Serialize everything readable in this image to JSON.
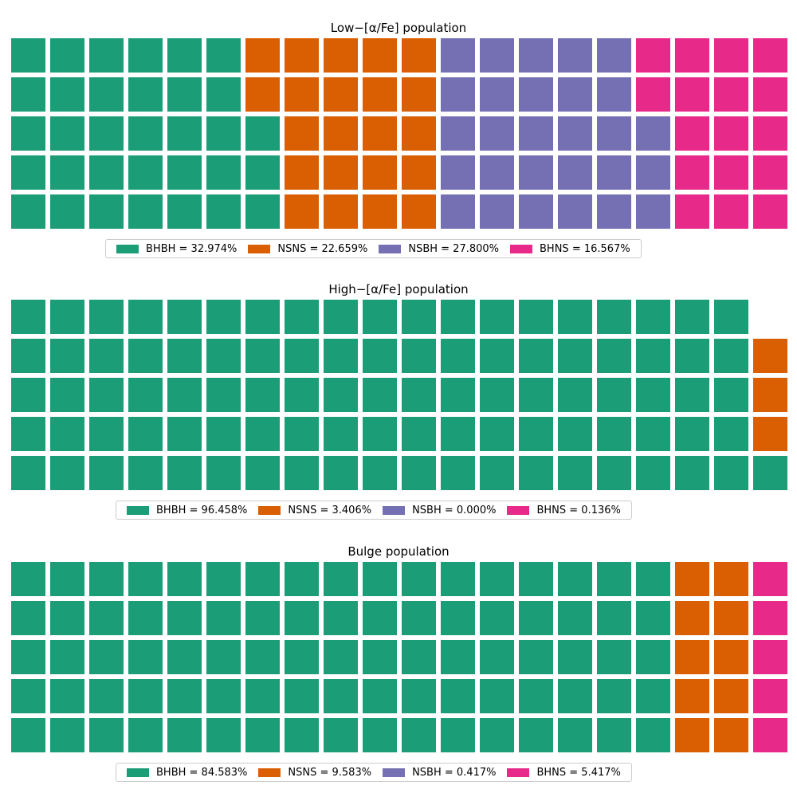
{
  "colors": {
    "BHBH": "#1b9e77",
    "NSNS": "#d95f02",
    "NSBH": "#7570b3",
    "BHNS": "#e7298a"
  },
  "chart_data": [
    {
      "type": "waffle",
      "title": "Low−[α/Fe] population",
      "grid": {
        "rows": 5,
        "cols": 20,
        "fill_order": "column-major, bottom-to-top"
      },
      "cells": {
        "BHBH": 33,
        "NSNS": 22,
        "NSBH": 28,
        "BHNS": 17
      },
      "series": [
        {
          "name": "BHBH",
          "percent": 32.974,
          "label": "BHBH = 32.974%"
        },
        {
          "name": "NSNS",
          "percent": 22.659,
          "label": "NSNS = 22.659%"
        },
        {
          "name": "NSBH",
          "percent": 27.8,
          "label": "NSBH = 27.800%"
        },
        {
          "name": "BHNS",
          "percent": 16.567,
          "label": "BHNS = 16.567%"
        }
      ]
    },
    {
      "type": "waffle",
      "title": "High−[α/Fe] population",
      "grid": {
        "rows": 5,
        "cols": 20,
        "fill_order": "column-major, bottom-to-top"
      },
      "cells": {
        "BHBH": 96,
        "NSNS": 3,
        "NSBH": 0,
        "BHNS": 0
      },
      "series": [
        {
          "name": "BHBH",
          "percent": 96.458,
          "label": "BHBH = 96.458%"
        },
        {
          "name": "NSNS",
          "percent": 3.406,
          "label": "NSNS = 3.406%"
        },
        {
          "name": "NSBH",
          "percent": 0.0,
          "label": "NSBH = 0.000%"
        },
        {
          "name": "BHNS",
          "percent": 0.136,
          "label": "BHNS = 0.136%"
        }
      ]
    },
    {
      "type": "waffle",
      "title": "Bulge population",
      "grid": {
        "rows": 5,
        "cols": 20,
        "fill_order": "column-major, bottom-to-top"
      },
      "cells": {
        "BHBH": 85,
        "NSNS": 10,
        "NSBH": 0,
        "BHNS": 5
      },
      "series": [
        {
          "name": "BHBH",
          "percent": 84.583,
          "label": "BHBH = 84.583%"
        },
        {
          "name": "NSNS",
          "percent": 9.583,
          "label": "NSNS = 9.583%"
        },
        {
          "name": "NSBH",
          "percent": 0.417,
          "label": "NSBH = 0.417%"
        },
        {
          "name": "BHNS",
          "percent": 5.417,
          "label": "BHNS = 5.417%"
        }
      ]
    }
  ]
}
